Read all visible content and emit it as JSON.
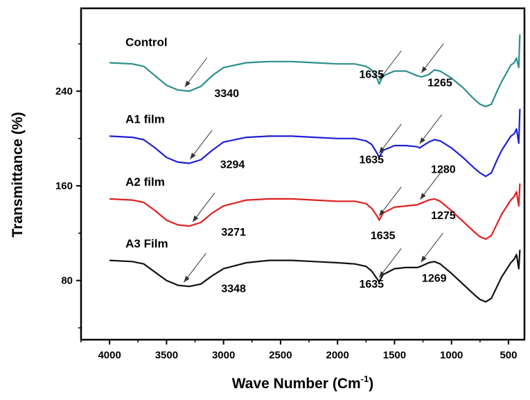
{
  "chart_data": {
    "type": "line",
    "xlabel": "Wave Number (Cm",
    "xlabel_sup": "-1",
    "xlabel_end": ")",
    "ylabel": "Transmittance (%)",
    "xlim": [
      4250,
      360
    ],
    "ylim": [
      30,
      310
    ],
    "x_reversed": true,
    "x_ticks": [
      4000,
      3500,
      3000,
      2500,
      2000,
      1500,
      1000,
      500
    ],
    "x_tick_labels": [
      "4000",
      "3500",
      "3000",
      "2500",
      "2000",
      "1500",
      "1000",
      "500"
    ],
    "y_ticks": [
      80,
      160,
      240
    ],
    "y_tick_labels": [
      "80",
      "160",
      "240"
    ],
    "grid": false,
    "series": [
      {
        "name": "Control",
        "color": "#2a8f8a",
        "points": [
          [
            4000,
            264
          ],
          [
            3800,
            263
          ],
          [
            3700,
            261
          ],
          [
            3600,
            253
          ],
          [
            3500,
            245
          ],
          [
            3400,
            241
          ],
          [
            3300,
            240
          ],
          [
            3200,
            244
          ],
          [
            3100,
            253
          ],
          [
            3000,
            260
          ],
          [
            2800,
            264
          ],
          [
            2600,
            265
          ],
          [
            2400,
            265
          ],
          [
            2200,
            264
          ],
          [
            2000,
            263
          ],
          [
            1850,
            263
          ],
          [
            1750,
            261
          ],
          [
            1700,
            258
          ],
          [
            1650,
            250
          ],
          [
            1635,
            246
          ],
          [
            1600,
            253
          ],
          [
            1500,
            257
          ],
          [
            1400,
            257
          ],
          [
            1300,
            253
          ],
          [
            1265,
            252
          ],
          [
            1200,
            254
          ],
          [
            1150,
            258
          ],
          [
            1100,
            257
          ],
          [
            1000,
            251
          ],
          [
            900,
            243
          ],
          [
            800,
            233
          ],
          [
            750,
            229
          ],
          [
            700,
            227
          ],
          [
            650,
            229
          ],
          [
            600,
            240
          ],
          [
            560,
            248
          ],
          [
            520,
            255
          ],
          [
            480,
            262
          ],
          [
            450,
            264
          ],
          [
            430,
            268
          ],
          [
            410,
            260
          ],
          [
            400,
            288
          ]
        ]
      },
      {
        "name": "A1 film",
        "color": "#1f1fd6",
        "points": [
          [
            4000,
            202
          ],
          [
            3800,
            201
          ],
          [
            3700,
            199
          ],
          [
            3600,
            192
          ],
          [
            3500,
            184
          ],
          [
            3400,
            180
          ],
          [
            3300,
            179
          ],
          [
            3200,
            182
          ],
          [
            3100,
            190
          ],
          [
            3000,
            197
          ],
          [
            2800,
            201
          ],
          [
            2600,
            202
          ],
          [
            2400,
            202
          ],
          [
            2200,
            201
          ],
          [
            2000,
            200
          ],
          [
            1850,
            200
          ],
          [
            1750,
            198
          ],
          [
            1700,
            195
          ],
          [
            1650,
            187
          ],
          [
            1635,
            184
          ],
          [
            1600,
            190
          ],
          [
            1500,
            194
          ],
          [
            1400,
            194
          ],
          [
            1300,
            193
          ],
          [
            1280,
            192
          ],
          [
            1200,
            197
          ],
          [
            1150,
            199
          ],
          [
            1100,
            198
          ],
          [
            1000,
            192
          ],
          [
            900,
            184
          ],
          [
            800,
            175
          ],
          [
            750,
            171
          ],
          [
            700,
            168
          ],
          [
            650,
            171
          ],
          [
            600,
            182
          ],
          [
            560,
            190
          ],
          [
            520,
            196
          ],
          [
            480,
            202
          ],
          [
            450,
            204
          ],
          [
            430,
            208
          ],
          [
            410,
            196
          ],
          [
            400,
            225
          ]
        ]
      },
      {
        "name": "A2 film",
        "color": "#e01f1f",
        "points": [
          [
            4000,
            149
          ],
          [
            3800,
            148
          ],
          [
            3700,
            146
          ],
          [
            3600,
            139
          ],
          [
            3500,
            131
          ],
          [
            3400,
            127
          ],
          [
            3300,
            126
          ],
          [
            3200,
            129
          ],
          [
            3100,
            137
          ],
          [
            3000,
            143
          ],
          [
            2800,
            148
          ],
          [
            2600,
            149
          ],
          [
            2400,
            149
          ],
          [
            2200,
            148
          ],
          [
            2000,
            147
          ],
          [
            1850,
            147
          ],
          [
            1750,
            145
          ],
          [
            1700,
            141
          ],
          [
            1650,
            134
          ],
          [
            1635,
            131
          ],
          [
            1600,
            137
          ],
          [
            1500,
            142
          ],
          [
            1400,
            143
          ],
          [
            1300,
            144
          ],
          [
            1275,
            145
          ],
          [
            1200,
            148
          ],
          [
            1150,
            149
          ],
          [
            1100,
            147
          ],
          [
            1000,
            139
          ],
          [
            900,
            130
          ],
          [
            800,
            121
          ],
          [
            750,
            117
          ],
          [
            700,
            115
          ],
          [
            650,
            118
          ],
          [
            600,
            128
          ],
          [
            560,
            136
          ],
          [
            520,
            142
          ],
          [
            480,
            148
          ],
          [
            450,
            151
          ],
          [
            430,
            155
          ],
          [
            410,
            143
          ],
          [
            400,
            162
          ]
        ]
      },
      {
        "name": "A3 Film",
        "color": "#111111",
        "points": [
          [
            4000,
            97
          ],
          [
            3800,
            96
          ],
          [
            3700,
            94
          ],
          [
            3600,
            87
          ],
          [
            3500,
            80
          ],
          [
            3400,
            76
          ],
          [
            3300,
            75
          ],
          [
            3200,
            77
          ],
          [
            3100,
            84
          ],
          [
            3000,
            90
          ],
          [
            2800,
            95
          ],
          [
            2600,
            97
          ],
          [
            2400,
            97
          ],
          [
            2200,
            96
          ],
          [
            2000,
            95
          ],
          [
            1850,
            94
          ],
          [
            1750,
            92
          ],
          [
            1700,
            88
          ],
          [
            1650,
            81
          ],
          [
            1635,
            79
          ],
          [
            1600,
            85
          ],
          [
            1500,
            90
          ],
          [
            1400,
            91
          ],
          [
            1300,
            91
          ],
          [
            1269,
            92
          ],
          [
            1200,
            95
          ],
          [
            1150,
            96
          ],
          [
            1100,
            94
          ],
          [
            1000,
            86
          ],
          [
            900,
            77
          ],
          [
            800,
            68
          ],
          [
            750,
            64
          ],
          [
            700,
            62
          ],
          [
            650,
            65
          ],
          [
            600,
            75
          ],
          [
            560,
            83
          ],
          [
            520,
            89
          ],
          [
            480,
            95
          ],
          [
            450,
            98
          ],
          [
            430,
            102
          ],
          [
            410,
            90
          ],
          [
            400,
            106
          ]
        ]
      }
    ],
    "series_labels": [
      {
        "text": "Control",
        "x": 3860,
        "y": 278
      },
      {
        "text": "A1 film",
        "x": 3860,
        "y": 213
      },
      {
        "text": "A2 film",
        "x": 3860,
        "y": 160
      },
      {
        "text": "A3 Film",
        "x": 3860,
        "y": 108
      }
    ],
    "annotations": [
      {
        "text": "3340",
        "x": 3340,
        "y": 240,
        "label_x": 3080,
        "label_y": 235
      },
      {
        "text": "1635",
        "x": 1635,
        "y": 246,
        "label_x": 1810,
        "label_y": 251
      },
      {
        "text": "1265",
        "x": 1265,
        "y": 252,
        "label_x": 1210,
        "label_y": 244
      },
      {
        "text": "3294",
        "x": 3294,
        "y": 179,
        "label_x": 3030,
        "label_y": 175
      },
      {
        "text": "1635",
        "x": 1635,
        "y": 184,
        "label_x": 1810,
        "label_y": 179
      },
      {
        "text": "1280",
        "x": 1280,
        "y": 192,
        "label_x": 1180,
        "label_y": 171
      },
      {
        "text": "3271",
        "x": 3271,
        "y": 126,
        "label_x": 3020,
        "label_y": 118
      },
      {
        "text": "1635",
        "x": 1635,
        "y": 131,
        "label_x": 1710,
        "label_y": 115
      },
      {
        "text": "1275",
        "x": 1275,
        "y": 145,
        "label_x": 1180,
        "label_y": 132
      },
      {
        "text": "3348",
        "x": 3348,
        "y": 75,
        "label_x": 3020,
        "label_y": 70
      },
      {
        "text": "1635",
        "x": 1635,
        "y": 79,
        "label_x": 1810,
        "label_y": 74
      },
      {
        "text": "1269",
        "x": 1269,
        "y": 92,
        "label_x": 1260,
        "label_y": 79
      }
    ]
  }
}
